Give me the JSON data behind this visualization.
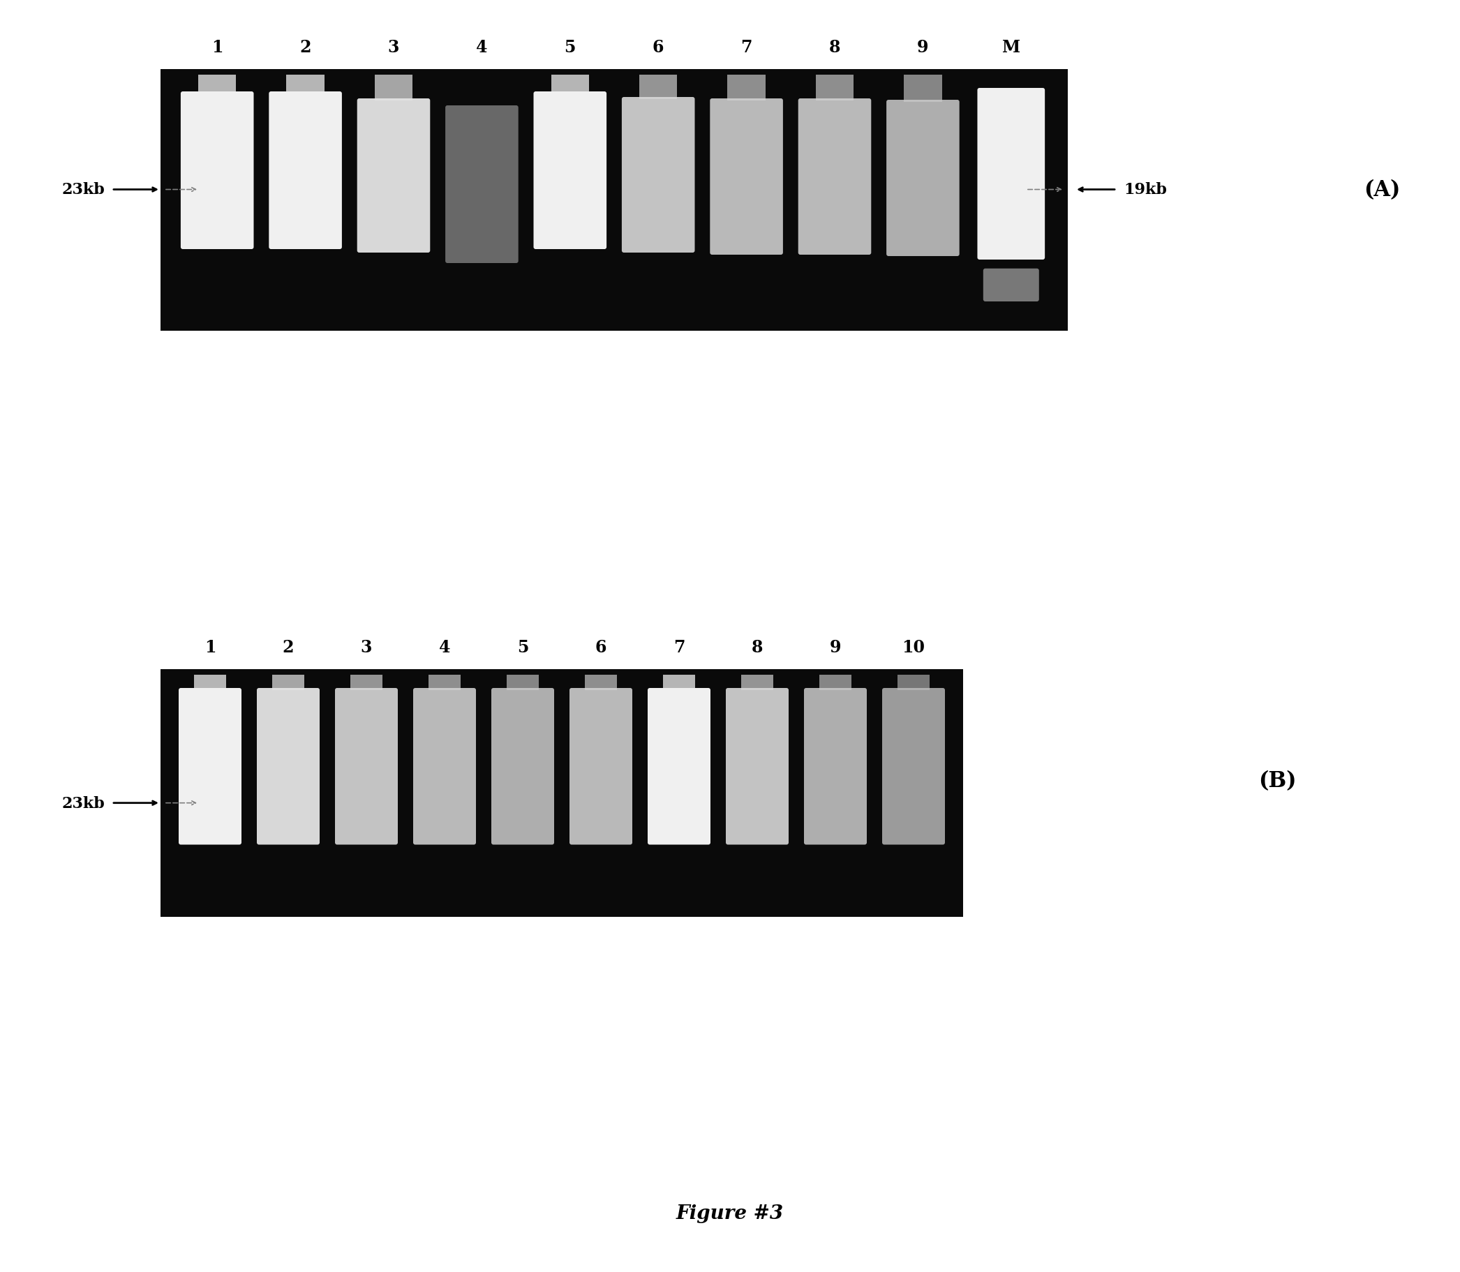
{
  "fig_width": 20.92,
  "fig_height": 18.24,
  "bg_color": "#ffffff",
  "figure_label": "Figure #3",
  "panel_A": {
    "lanes_labels": [
      "1",
      "2",
      "3",
      "4",
      "5",
      "6",
      "7",
      "8",
      "9",
      "M"
    ],
    "left_label": "23kb",
    "right_label": "19kb",
    "panel_label": "(A)"
  },
  "panel_B": {
    "lanes_labels": [
      "1",
      "2",
      "3",
      "4",
      "5",
      "6",
      "7",
      "8",
      "9",
      "10"
    ],
    "left_label": "23kb",
    "panel_label": "(B)"
  }
}
